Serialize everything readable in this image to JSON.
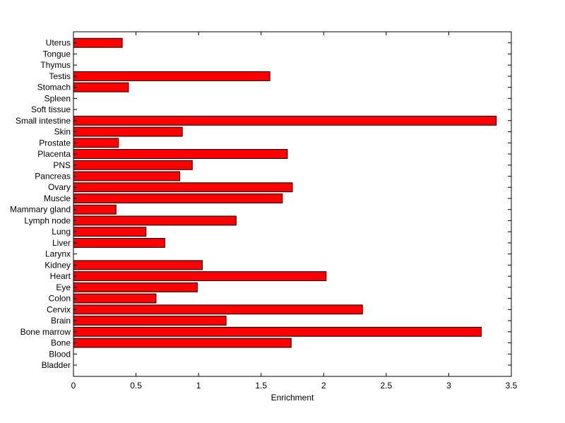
{
  "chart_data": {
    "type": "bar",
    "orientation": "horizontal",
    "xlabel": "Enrichment",
    "ylabel": "",
    "title": "",
    "xlim": [
      0,
      3.5
    ],
    "xticks": [
      0,
      0.5,
      1,
      1.5,
      2,
      2.5,
      3,
      3.5
    ],
    "xtick_labels": [
      "0",
      "0.5",
      "1",
      "1.5",
      "2",
      "2.5",
      "3",
      "3.5"
    ],
    "grid": false,
    "bar_color": "#ff0000",
    "bar_edge_color": "#000000",
    "categories": [
      "Bladder",
      "Blood",
      "Bone",
      "Bone marrow",
      "Brain",
      "Cervix",
      "Colon",
      "Eye",
      "Heart",
      "Kidney",
      "Larynx",
      "Liver",
      "Lung",
      "Lymph node",
      "Mammary gland",
      "Muscle",
      "Ovary",
      "Pancreas",
      "PNS",
      "Placenta",
      "Prostate",
      "Skin",
      "Small intestine",
      "Soft tissue",
      "Spleen",
      "Stomach",
      "Testis",
      "Thymus",
      "Tongue",
      "Uterus"
    ],
    "values": [
      0,
      0,
      1.74,
      3.26,
      1.22,
      2.31,
      0.66,
      0.99,
      2.02,
      1.03,
      0,
      0.73,
      0.58,
      1.3,
      0.34,
      1.67,
      1.75,
      0.85,
      0.95,
      1.71,
      0.36,
      0.87,
      3.38,
      0,
      0,
      0.44,
      1.57,
      0,
      0,
      0.39
    ]
  }
}
